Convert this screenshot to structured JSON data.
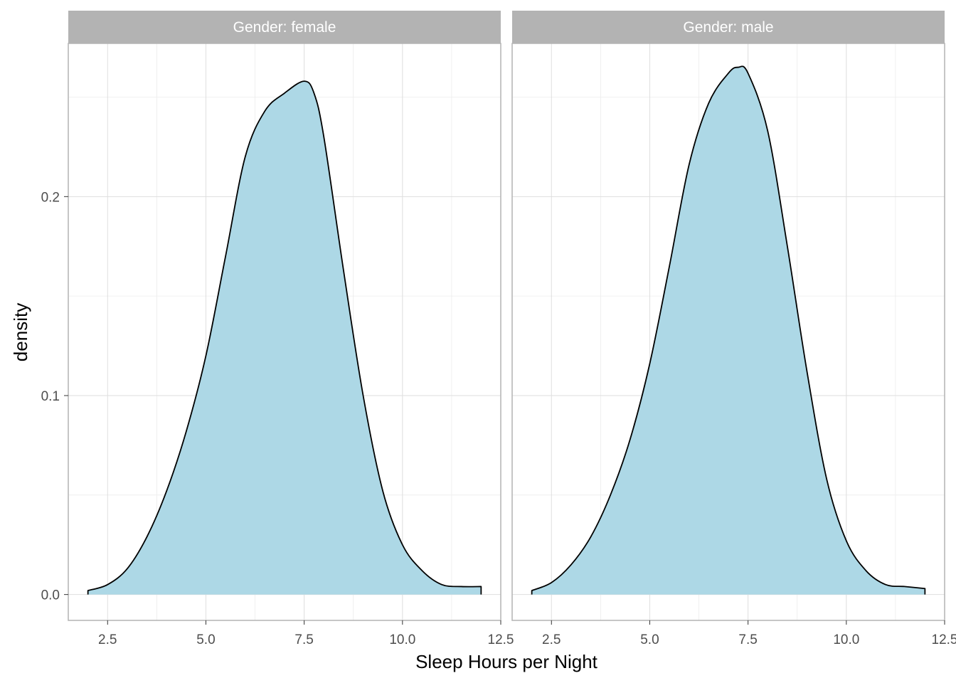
{
  "chart_data": {
    "type": "area",
    "xlabel": "Sleep Hours per Night",
    "ylabel": "density",
    "xlim": [
      1.5,
      12.5
    ],
    "ylim": [
      -0.013,
      0.277
    ],
    "x_ticks": [
      2.5,
      5.0,
      7.5,
      10.0,
      12.5
    ],
    "x_tick_labels": [
      "2.5",
      "5.0",
      "7.5",
      "10.0",
      "12.5"
    ],
    "y_ticks": [
      0.0,
      0.1,
      0.2
    ],
    "y_tick_labels": [
      "0.0",
      "0.1",
      "0.2"
    ],
    "grid": true,
    "fill_color": "#add8e6",
    "line_color": "#000000",
    "panels": [
      {
        "strip_label": "Gender: female",
        "x": [
          2.0,
          2.5,
          3.0,
          3.5,
          4.0,
          4.5,
          5.0,
          5.5,
          6.0,
          6.5,
          7.0,
          7.5,
          7.75,
          8.0,
          8.5,
          9.0,
          9.5,
          10.0,
          10.5,
          11.0,
          11.5,
          12.0
        ],
        "y": [
          0.002,
          0.005,
          0.013,
          0.029,
          0.052,
          0.082,
          0.12,
          0.17,
          0.22,
          0.243,
          0.252,
          0.258,
          0.252,
          0.23,
          0.163,
          0.1,
          0.052,
          0.025,
          0.012,
          0.005,
          0.004,
          0.004
        ]
      },
      {
        "strip_label": "Gender: male",
        "x": [
          2.0,
          2.5,
          3.0,
          3.5,
          4.0,
          4.5,
          5.0,
          5.5,
          6.0,
          6.5,
          7.0,
          7.25,
          7.5,
          8.0,
          8.5,
          9.0,
          9.5,
          10.0,
          10.5,
          11.0,
          11.5,
          12.0
        ],
        "y": [
          0.002,
          0.006,
          0.015,
          0.029,
          0.05,
          0.078,
          0.116,
          0.165,
          0.216,
          0.247,
          0.262,
          0.265,
          0.262,
          0.233,
          0.175,
          0.112,
          0.058,
          0.027,
          0.012,
          0.005,
          0.004,
          0.003
        ]
      }
    ]
  }
}
